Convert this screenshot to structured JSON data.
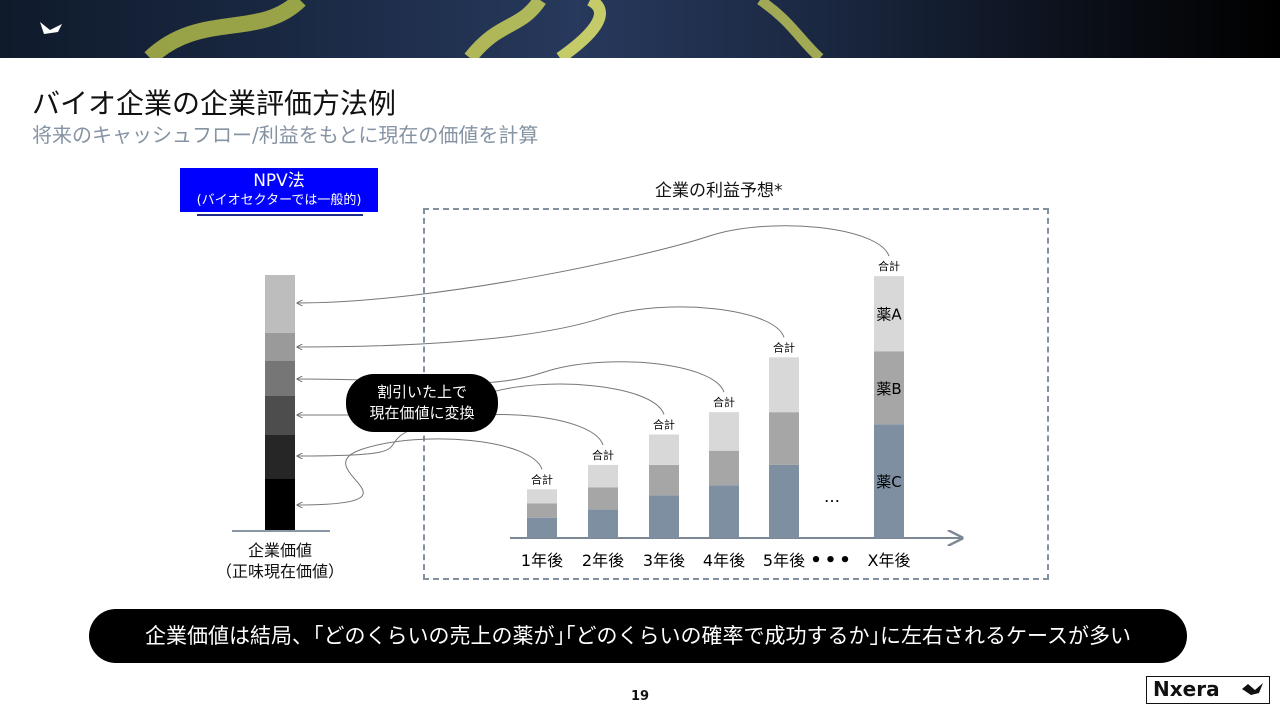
{
  "header": {
    "title": "バイオ企業の企業評価方法例",
    "subtitle": "将来のキャッシュフロー/利益をもとに現在の価値を計算"
  },
  "npv": {
    "label": "NPV法",
    "sublabel": "(バイオセクターでは一般的)"
  },
  "company_value": {
    "label_line1": "企業価値",
    "label_line2": "（正味現在価値）"
  },
  "callout": {
    "line1": "割引いた上で",
    "line2": "現在価値に変換"
  },
  "bottom_message": "企業価値は結局、｢どのくらいの売上の薬が｣｢どのくらいの確率で成功するか｣に左右されるケースが多い",
  "page_number": "19",
  "logo_text": "Nxera",
  "colors": {
    "drug_a": "#d8d8d8",
    "drug_b": "#a6a6a6",
    "drug_c": "#7d8fa1",
    "npv_box": "#0000ff"
  },
  "chart_data": {
    "type": "bar",
    "title": "企業の利益予想*",
    "stacked": true,
    "categories": [
      "1年後",
      "2年後",
      "3年後",
      "4年後",
      "5年後",
      "…",
      "X年後"
    ],
    "ellipsis_mid": "…",
    "total_label": "合計",
    "series": [
      {
        "name": "薬C",
        "values": [
          1.0,
          1.4,
          2.1,
          2.6,
          3.6,
          null,
          5.6
        ]
      },
      {
        "name": "薬B",
        "values": [
          0.7,
          1.1,
          1.5,
          1.7,
          2.6,
          null,
          3.6
        ]
      },
      {
        "name": "薬A",
        "values": [
          0.7,
          1.1,
          1.5,
          1.9,
          2.7,
          null,
          3.7
        ]
      }
    ],
    "npv_stack_levels": 6
  }
}
